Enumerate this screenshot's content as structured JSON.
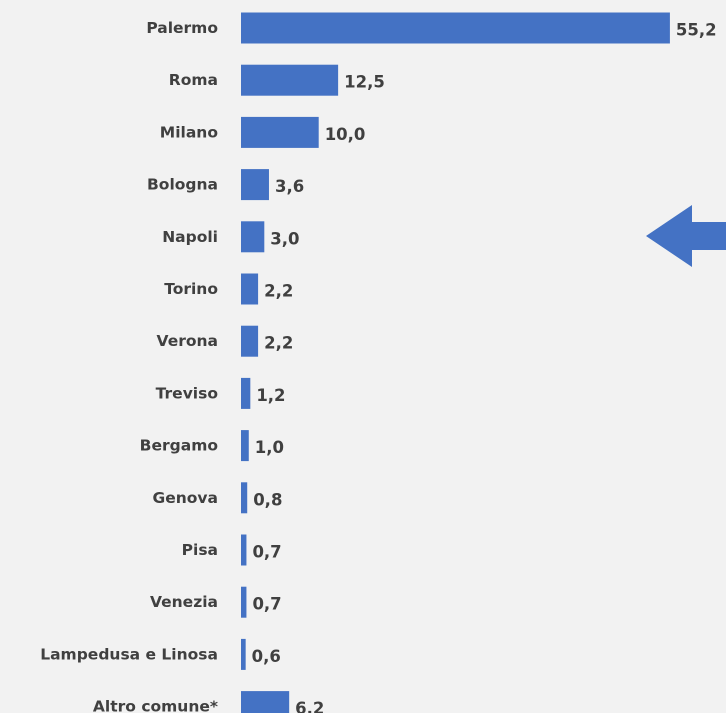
{
  "chart_data": {
    "type": "bar",
    "orientation": "horizontal",
    "categories": [
      "Palermo",
      "Roma",
      "Milano",
      "Bologna",
      "Napoli",
      "Torino",
      "Verona",
      "Treviso",
      "Bergamo",
      "Genova",
      "Pisa",
      "Venezia",
      "Lampedusa e Linosa",
      "Altro comune*"
    ],
    "values": [
      55.2,
      12.5,
      10.0,
      3.6,
      3.0,
      2.2,
      2.2,
      1.2,
      1.0,
      0.8,
      0.7,
      0.7,
      0.6,
      6.2
    ],
    "value_labels": [
      "55,2",
      "12,5",
      "10,0",
      "3,6",
      "3,0",
      "2,2",
      "2,2",
      "1,2",
      "1,0",
      "0,8",
      "0,7",
      "0,7",
      "0,6",
      "6,2"
    ],
    "title": "",
    "xlabel": "",
    "ylabel": "",
    "grid": false,
    "legend": "none",
    "bar_color": "#4472c4",
    "label_color": "#404040",
    "background": "#f2f2f2",
    "annotations": [
      {
        "type": "arrow",
        "direction": "left",
        "color": "#4472c4",
        "near": "Napoli"
      }
    ]
  }
}
